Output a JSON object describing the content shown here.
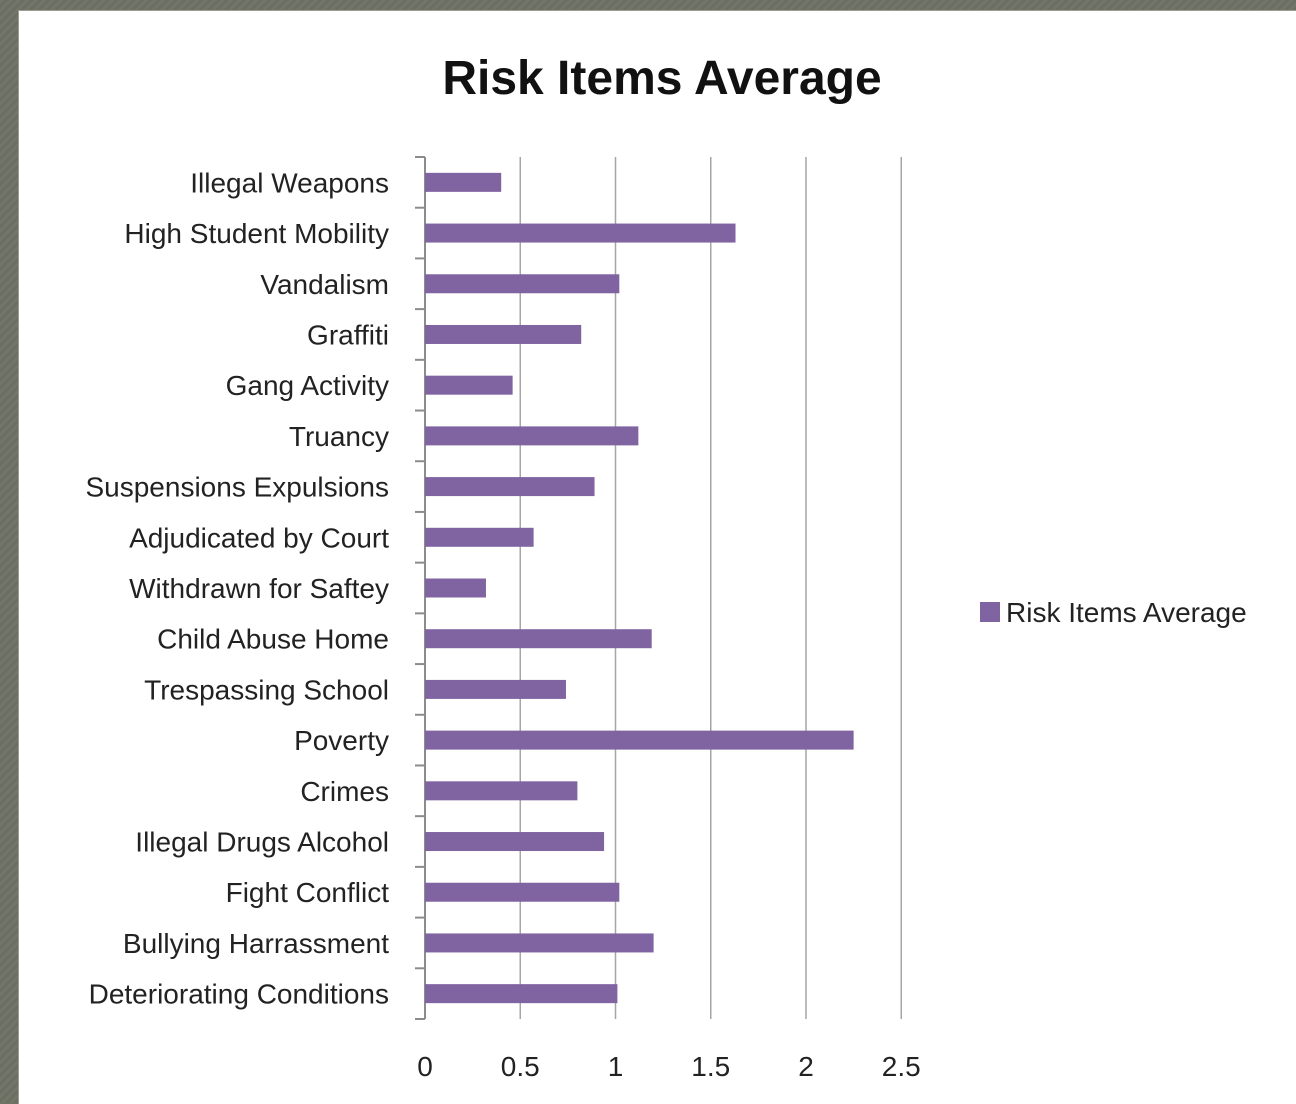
{
  "chart_data": {
    "type": "bar",
    "orientation": "horizontal",
    "title": "Risk Items Average",
    "xlabel": "",
    "ylabel": "",
    "xlim": [
      0,
      2.5
    ],
    "xticks": [
      "0",
      "0.5",
      "1",
      "1.5",
      "2",
      "2.5"
    ],
    "grid": "vertical",
    "legend_position": "right",
    "categories": [
      "Illegal Weapons",
      "High Student Mobility",
      "Vandalism",
      "Graffiti",
      "Gang Activity",
      "Truancy",
      "Suspensions Expulsions",
      "Adjudicated by Court",
      "Withdrawn for Saftey",
      "Child Abuse Home",
      "Trespassing School",
      "Poverty",
      "Crimes",
      "Illegal Drugs Alcohol",
      "Fight Conflict",
      "Bullying Harrassment",
      "Deteriorating Conditions"
    ],
    "series": [
      {
        "name": "Risk Items Average",
        "color": "#8064a2",
        "values": [
          0.4,
          1.63,
          1.02,
          0.82,
          0.46,
          1.12,
          0.89,
          0.57,
          0.32,
          1.19,
          0.74,
          2.25,
          0.8,
          0.94,
          1.02,
          1.2,
          1.01
        ]
      }
    ]
  }
}
